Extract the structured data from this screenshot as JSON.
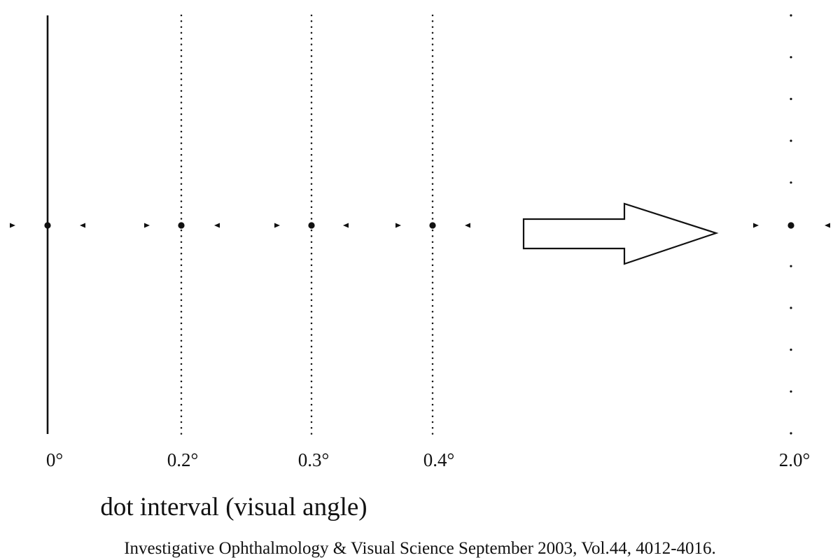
{
  "diagram": {
    "line_color": "#111111",
    "background": "#ffffff",
    "axis_title": "dot interval (visual angle)",
    "citation": "Investigative Ophthalmology & Visual Science September 2003, Vol.44, 4012-4016.",
    "stimuli": [
      {
        "label": "0°",
        "interval_deg": 0,
        "line_style": "solid"
      },
      {
        "label": "0.2°",
        "interval_deg": 0.2,
        "line_style": "dotted"
      },
      {
        "label": "0.3°",
        "interval_deg": 0.3,
        "line_style": "dotted"
      },
      {
        "label": "0.4°",
        "interval_deg": 0.4,
        "line_style": "dotted"
      },
      {
        "label": "2.0°",
        "interval_deg": 2.0,
        "line_style": "dotted"
      }
    ],
    "continuation_arrow": "block-arrow-right"
  }
}
